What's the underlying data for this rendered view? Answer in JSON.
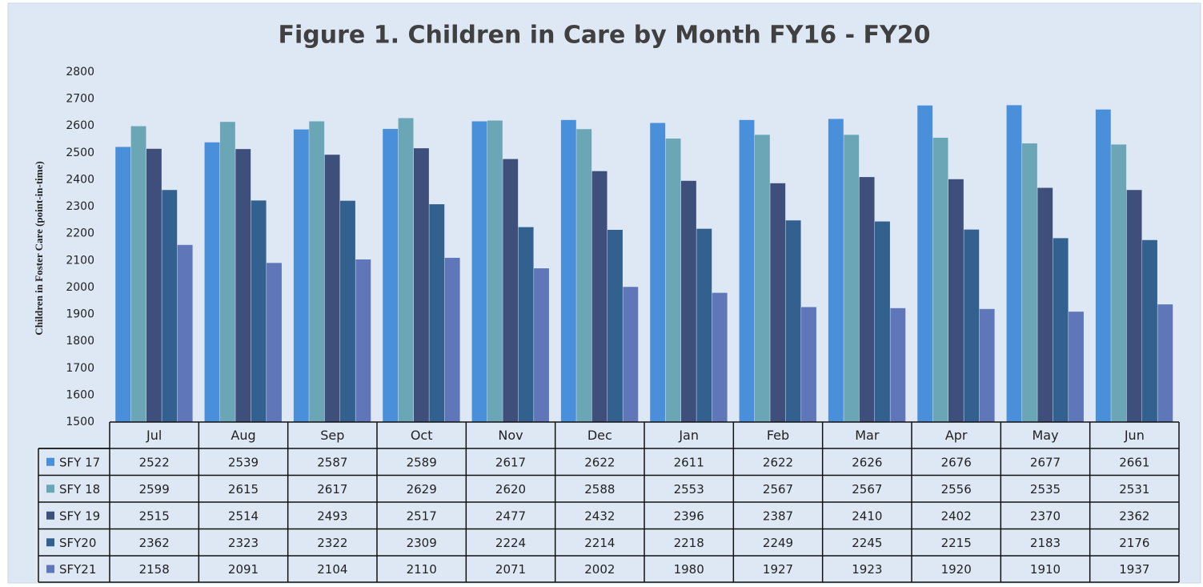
{
  "chart_data": {
    "type": "bar",
    "title": "Figure 1. Children in Care by Month FY16 - FY20",
    "y_label": "Children in Foster Care (point-in-time)",
    "categories": [
      "Jul",
      "Aug",
      "Sep",
      "Oct",
      "Nov",
      "Dec",
      "Jan",
      "Feb",
      "Mar",
      "Apr",
      "May",
      "Jun"
    ],
    "series": [
      {
        "name": "SFY 17",
        "color": "#4a8fda",
        "values": [
          2522,
          2539,
          2587,
          2589,
          2617,
          2622,
          2611,
          2622,
          2626,
          2676,
          2677,
          2661
        ]
      },
      {
        "name": "SFY 18",
        "color": "#6aa6b6",
        "values": [
          2599,
          2615,
          2617,
          2629,
          2620,
          2588,
          2553,
          2567,
          2567,
          2556,
          2535,
          2531
        ]
      },
      {
        "name": "SFY 19",
        "color": "#3e4f7c",
        "values": [
          2515,
          2514,
          2493,
          2517,
          2477,
          2432,
          2396,
          2387,
          2410,
          2402,
          2370,
          2362
        ]
      },
      {
        "name": "SFY20",
        "color": "#32608f",
        "values": [
          2362,
          2323,
          2322,
          2309,
          2224,
          2214,
          2218,
          2249,
          2245,
          2215,
          2183,
          2176
        ]
      },
      {
        "name": "SFY21",
        "color": "#5f77b8",
        "values": [
          2158,
          2091,
          2104,
          2110,
          2071,
          2002,
          1980,
          1927,
          1923,
          1920,
          1910,
          1937
        ]
      }
    ],
    "ylim": [
      1500,
      2800
    ],
    "yticks": [
      1500,
      1600,
      1700,
      1800,
      1900,
      2000,
      2100,
      2200,
      2300,
      2400,
      2500,
      2600,
      2700,
      2800
    ],
    "grid": false,
    "data_table": true
  }
}
